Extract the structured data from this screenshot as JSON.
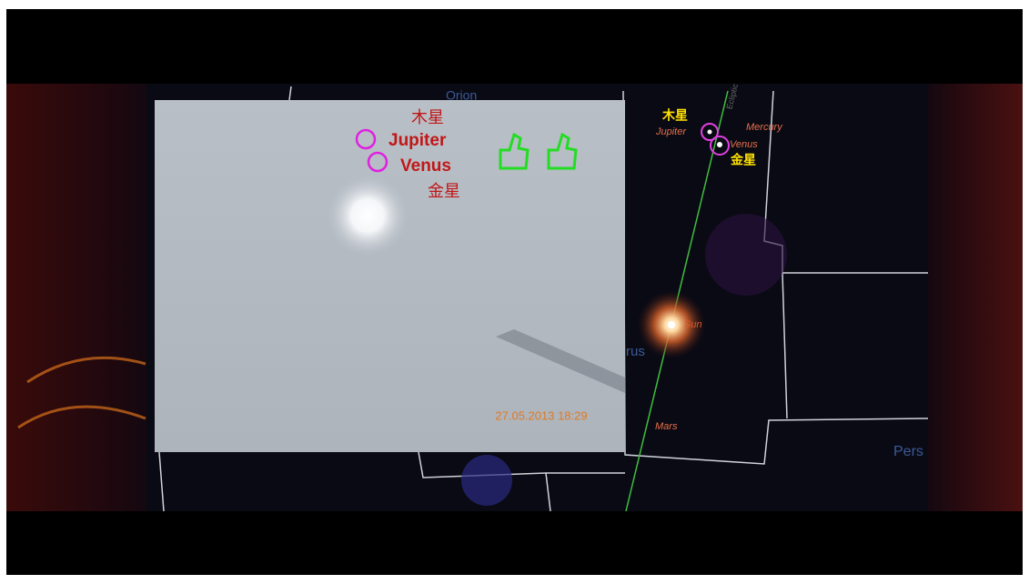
{
  "photo": {
    "labels": {
      "jupiter_cn": "木星",
      "jupiter": "Jupiter",
      "venus": "Venus",
      "venus_cn": "金星"
    },
    "timestamp": "27.05.2013 18:29"
  },
  "sky_map": {
    "constellations": {
      "orion": "Orion",
      "taurus": "rus",
      "perseus": "Pers"
    },
    "ecliptic": "Ecliptic",
    "labels": {
      "jupiter_cn": "木星",
      "jupiter": "Jupiter",
      "mercury": "Mercury",
      "venus": "Venus",
      "venus_cn": "金星",
      "sun": "Sun",
      "mars": "Mars"
    }
  }
}
